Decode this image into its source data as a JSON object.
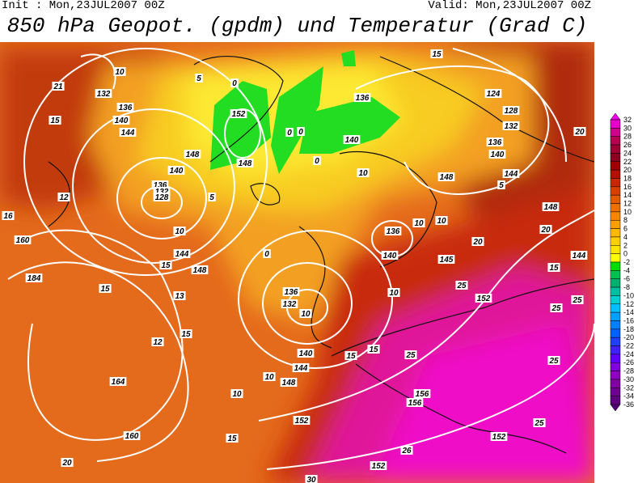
{
  "header": {
    "init": "Init : Mon,23JUL2007 00Z",
    "valid": "Valid: Mon,23JUL2007 00Z",
    "title": "850 hPa Geopot. (gpdm) und Temperatur (Grad C)"
  },
  "colorbar": {
    "labels": [
      32,
      30,
      28,
      26,
      24,
      22,
      20,
      18,
      16,
      14,
      12,
      10,
      8,
      6,
      4,
      2,
      0,
      -2,
      -4,
      -6,
      -8,
      -10,
      -12,
      -14,
      -16,
      -18,
      -20,
      -22,
      -24,
      -26,
      -28,
      -30,
      -32,
      -34,
      -36
    ],
    "colors": [
      "#ee00ee",
      "#e600c8",
      "#d0008c",
      "#b4004f",
      "#9e0035",
      "#8c0020",
      "#a00000",
      "#b41000",
      "#c82800",
      "#d84000",
      "#e45a00",
      "#ee7000",
      "#f58800",
      "#fba000",
      "#ffb800",
      "#ffd000",
      "#ffe600",
      "#ffff00",
      "#00dd00",
      "#00c050",
      "#00b070",
      "#00c0a0",
      "#00d0d0",
      "#00c0ff",
      "#00a0ff",
      "#0080ff",
      "#0060ff",
      "#2040ff",
      "#4020ff",
      "#6000ff",
      "#8000e0",
      "#9000c0",
      "#8000a0",
      "#700090",
      "#600080",
      "#500070"
    ]
  },
  "contour_labels": [
    "15",
    "10",
    "21",
    "132",
    "136",
    "15",
    "140",
    "144",
    "152",
    "0",
    "0",
    "5",
    "0",
    "136",
    "124",
    "128",
    "132",
    "136",
    "140",
    "144",
    "5",
    "20",
    "140",
    "148",
    "148",
    "0",
    "10",
    "148",
    "140",
    "136",
    "132",
    "128",
    "12",
    "5",
    "16",
    "10",
    "160",
    "148",
    "10",
    "10",
    "136",
    "140",
    "20",
    "20",
    "144",
    "148",
    "15",
    "0",
    "145",
    "144",
    "184",
    "15",
    "13",
    "136",
    "132",
    "10",
    "25",
    "152",
    "15",
    "25",
    "25",
    "10",
    "15",
    "12",
    "140",
    "144",
    "148",
    "15",
    "15",
    "25",
    "25",
    "10",
    "164",
    "10",
    "156",
    "156",
    "152",
    "25",
    "15",
    "160",
    "152",
    "26",
    "152",
    "20",
    "30"
  ]
}
